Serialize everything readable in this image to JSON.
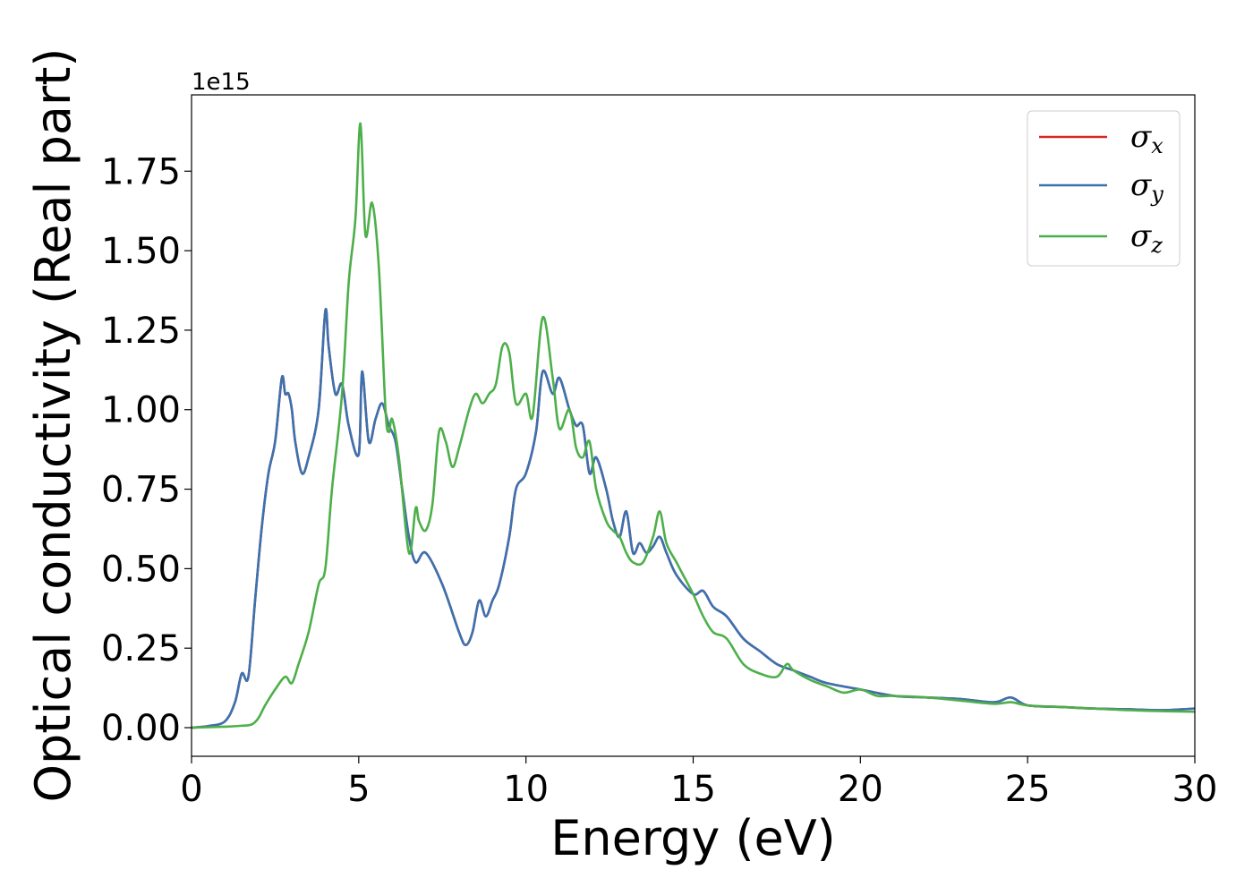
{
  "chart_data": {
    "type": "line",
    "title": "",
    "xlabel": "Energy (eV)",
    "ylabel": "Optical conductivity (Real part)",
    "y_offset_text": "1e15",
    "y_scale": 1000000000000000.0,
    "xlim": [
      0,
      30
    ],
    "ylim": [
      -0.09,
      1.99
    ],
    "x_ticks": [
      0,
      5,
      10,
      15,
      20,
      25,
      30
    ],
    "x_tick_labels": [
      "0",
      "5",
      "10",
      "15",
      "20",
      "25",
      "30"
    ],
    "y_ticks": [
      0.0,
      0.25,
      0.5,
      0.75,
      1.0,
      1.25,
      1.5,
      1.75
    ],
    "y_tick_labels": [
      "0.00",
      "0.25",
      "0.50",
      "0.75",
      "1.00",
      "1.25",
      "1.50",
      "1.75"
    ],
    "grid": false,
    "legend_position": "top-right",
    "series": [
      {
        "name": "σx",
        "legend_base": "σ",
        "legend_sub": "x",
        "color": "#d62728",
        "x": [
          0,
          0.5,
          1,
          1.3,
          1.5,
          1.7,
          1.9,
          2.1,
          2.3,
          2.5,
          2.7,
          2.8,
          2.9,
          3.0,
          3.1,
          3.3,
          3.5,
          3.8,
          4.0,
          4.1,
          4.3,
          4.5,
          4.7,
          5.0,
          5.1,
          5.3,
          5.5,
          5.7,
          5.9,
          6.1,
          6.3,
          6.5,
          6.7,
          7.0,
          7.5,
          8.0,
          8.2,
          8.4,
          8.6,
          8.8,
          9.0,
          9.2,
          9.5,
          9.7,
          10.0,
          10.3,
          10.5,
          10.8,
          11.0,
          11.3,
          11.5,
          11.7,
          11.9,
          12.1,
          12.4,
          12.6,
          12.8,
          13.0,
          13.2,
          13.4,
          13.6,
          13.8,
          14.0,
          14.2,
          14.5,
          15.0,
          15.3,
          15.6,
          16.0,
          16.5,
          17.0,
          17.5,
          18.0,
          18.5,
          19.0,
          20.0,
          21.0,
          22.0,
          23.0,
          24.0,
          24.5,
          25.0,
          26.0,
          27.0,
          28.0,
          29.0,
          30.0
        ],
        "y": [
          0.0,
          0.005,
          0.02,
          0.08,
          0.17,
          0.16,
          0.4,
          0.63,
          0.8,
          0.9,
          1.1,
          1.05,
          1.05,
          1.0,
          0.9,
          0.8,
          0.85,
          1.0,
          1.31,
          1.2,
          1.05,
          1.08,
          0.95,
          0.86,
          1.12,
          0.9,
          0.97,
          1.02,
          0.95,
          0.9,
          0.75,
          0.6,
          0.52,
          0.55,
          0.45,
          0.3,
          0.26,
          0.3,
          0.4,
          0.35,
          0.4,
          0.45,
          0.6,
          0.75,
          0.8,
          0.93,
          1.12,
          1.05,
          1.1,
          1.0,
          0.95,
          0.95,
          0.8,
          0.85,
          0.75,
          0.65,
          0.6,
          0.68,
          0.55,
          0.58,
          0.55,
          0.57,
          0.6,
          0.55,
          0.48,
          0.42,
          0.43,
          0.38,
          0.35,
          0.28,
          0.24,
          0.2,
          0.18,
          0.16,
          0.14,
          0.12,
          0.1,
          0.095,
          0.09,
          0.08,
          0.095,
          0.07,
          0.065,
          0.06,
          0.058,
          0.055,
          0.06
        ]
      },
      {
        "name": "σy",
        "legend_base": "σ",
        "legend_sub": "y",
        "color": "#3a72b0",
        "x": [
          0,
          0.5,
          1,
          1.3,
          1.5,
          1.7,
          1.9,
          2.1,
          2.3,
          2.5,
          2.7,
          2.8,
          2.9,
          3.0,
          3.1,
          3.3,
          3.5,
          3.8,
          4.0,
          4.1,
          4.3,
          4.5,
          4.7,
          5.0,
          5.1,
          5.3,
          5.5,
          5.7,
          5.9,
          6.1,
          6.3,
          6.5,
          6.7,
          7.0,
          7.5,
          8.0,
          8.2,
          8.4,
          8.6,
          8.8,
          9.0,
          9.2,
          9.5,
          9.7,
          10.0,
          10.3,
          10.5,
          10.8,
          11.0,
          11.3,
          11.5,
          11.7,
          11.9,
          12.1,
          12.4,
          12.6,
          12.8,
          13.0,
          13.2,
          13.4,
          13.6,
          13.8,
          14.0,
          14.2,
          14.5,
          15.0,
          15.3,
          15.6,
          16.0,
          16.5,
          17.0,
          17.5,
          18.0,
          18.5,
          19.0,
          20.0,
          21.0,
          22.0,
          23.0,
          24.0,
          24.5,
          25.0,
          26.0,
          27.0,
          28.0,
          29.0,
          30.0
        ],
        "y": [
          0.0,
          0.005,
          0.02,
          0.08,
          0.17,
          0.16,
          0.4,
          0.63,
          0.8,
          0.9,
          1.1,
          1.05,
          1.05,
          1.0,
          0.9,
          0.8,
          0.85,
          1.0,
          1.31,
          1.2,
          1.05,
          1.08,
          0.95,
          0.86,
          1.12,
          0.9,
          0.97,
          1.02,
          0.95,
          0.9,
          0.75,
          0.6,
          0.52,
          0.55,
          0.45,
          0.3,
          0.26,
          0.3,
          0.4,
          0.35,
          0.4,
          0.45,
          0.6,
          0.75,
          0.8,
          0.93,
          1.12,
          1.05,
          1.1,
          1.0,
          0.95,
          0.95,
          0.8,
          0.85,
          0.75,
          0.65,
          0.6,
          0.68,
          0.55,
          0.58,
          0.55,
          0.57,
          0.6,
          0.55,
          0.48,
          0.42,
          0.43,
          0.38,
          0.35,
          0.28,
          0.24,
          0.2,
          0.18,
          0.16,
          0.14,
          0.12,
          0.1,
          0.095,
          0.09,
          0.08,
          0.095,
          0.07,
          0.065,
          0.06,
          0.058,
          0.055,
          0.06
        ]
      },
      {
        "name": "σz",
        "legend_base": "σ",
        "legend_sub": "z",
        "color": "#4daf4a",
        "x": [
          0,
          1,
          1.5,
          1.8,
          2.0,
          2.2,
          2.5,
          2.8,
          3.0,
          3.2,
          3.5,
          3.8,
          4.0,
          4.2,
          4.5,
          4.7,
          4.9,
          5.05,
          5.2,
          5.4,
          5.6,
          5.8,
          5.9,
          6.0,
          6.2,
          6.5,
          6.7,
          6.8,
          7.0,
          7.2,
          7.4,
          7.6,
          7.8,
          8.0,
          8.3,
          8.5,
          8.7,
          8.9,
          9.1,
          9.3,
          9.5,
          9.7,
          10.0,
          10.2,
          10.5,
          10.8,
          11.0,
          11.3,
          11.5,
          11.7,
          11.9,
          12.1,
          12.4,
          12.6,
          12.8,
          13.0,
          13.2,
          13.5,
          13.8,
          14.0,
          14.2,
          14.5,
          14.7,
          15.0,
          15.3,
          15.6,
          16.0,
          16.5,
          17.0,
          17.5,
          17.8,
          18.0,
          18.5,
          19.0,
          19.5,
          20.0,
          20.5,
          21.0,
          22.0,
          23.0,
          24.0,
          24.5,
          25.0,
          26.0,
          27.0,
          28.0,
          29.0,
          30.0
        ],
        "y": [
          0.0,
          0.003,
          0.006,
          0.01,
          0.03,
          0.07,
          0.12,
          0.16,
          0.14,
          0.2,
          0.3,
          0.45,
          0.5,
          0.75,
          1.05,
          1.4,
          1.6,
          1.9,
          1.55,
          1.65,
          1.45,
          1.0,
          0.93,
          0.97,
          0.85,
          0.55,
          0.69,
          0.65,
          0.62,
          0.7,
          0.93,
          0.9,
          0.82,
          0.88,
          1.0,
          1.05,
          1.02,
          1.05,
          1.08,
          1.2,
          1.18,
          1.02,
          1.05,
          0.98,
          1.29,
          1.1,
          0.94,
          1.0,
          0.88,
          0.85,
          0.9,
          0.75,
          0.65,
          0.62,
          0.6,
          0.55,
          0.52,
          0.52,
          0.6,
          0.68,
          0.58,
          0.52,
          0.48,
          0.42,
          0.35,
          0.3,
          0.28,
          0.2,
          0.17,
          0.16,
          0.2,
          0.18,
          0.15,
          0.13,
          0.11,
          0.12,
          0.1,
          0.1,
          0.095,
          0.085,
          0.075,
          0.08,
          0.07,
          0.065,
          0.06,
          0.055,
          0.052,
          0.05
        ]
      }
    ]
  }
}
